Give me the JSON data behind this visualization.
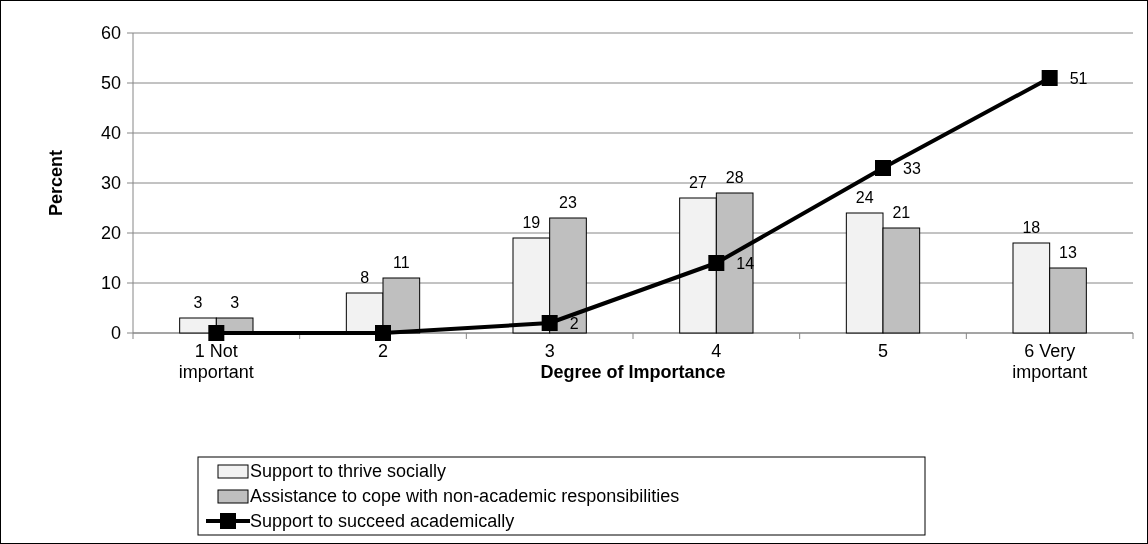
{
  "chart_data": {
    "type": "bar",
    "xlabel": "Degree of Importance",
    "ylabel": "Percent",
    "categories": [
      "1 Not important",
      "2",
      "3",
      "4",
      "5",
      "6 Very important"
    ],
    "ylim": [
      0,
      60
    ],
    "yticks": [
      0,
      10,
      20,
      30,
      40,
      50,
      60
    ],
    "grid": "y",
    "legend": "bottom",
    "series": [
      {
        "name": "Support to thrive socially",
        "color": "#f2f2f2",
        "values": [
          3,
          8,
          19,
          27,
          24,
          18
        ],
        "value_labels": [
          "3",
          "8",
          "19",
          "27",
          "24",
          "18"
        ]
      },
      {
        "name": "Assistance to cope with non-academic responsibilities",
        "color": "#bfbfbf",
        "values": [
          3,
          11,
          23,
          28,
          21,
          13
        ],
        "value_labels": [
          "3",
          "11",
          "23",
          "28",
          "21",
          "13"
        ]
      },
      {
        "name": "Support to succeed academically",
        "type": "line",
        "color": "#000000",
        "marker": "square",
        "line_style": "solid",
        "values": [
          0,
          0,
          2,
          14,
          33,
          51
        ],
        "value_labels": [
          null,
          null,
          "2",
          "14",
          "33",
          "51"
        ]
      }
    ]
  }
}
